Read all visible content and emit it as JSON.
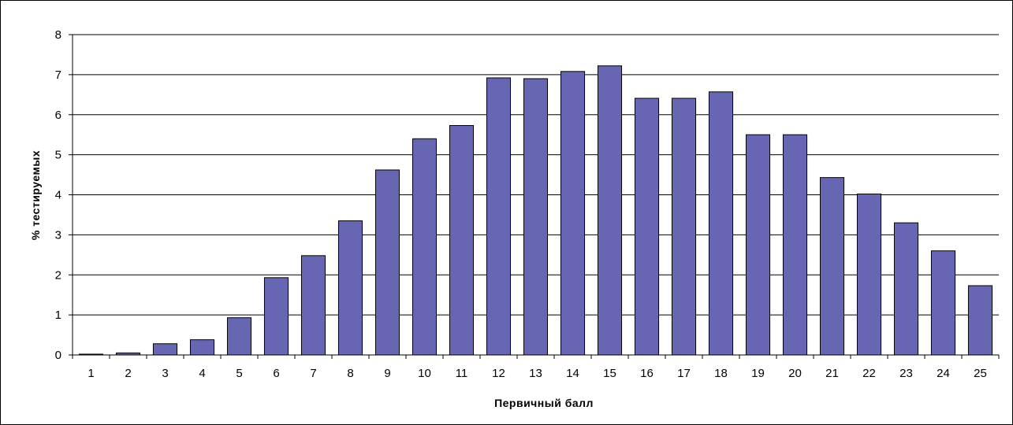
{
  "chart_data": {
    "type": "bar",
    "title": "",
    "xlabel": "Первичный балл",
    "ylabel": "% тестируемых",
    "categories": [
      "1",
      "2",
      "3",
      "4",
      "5",
      "6",
      "7",
      "8",
      "9",
      "10",
      "11",
      "12",
      "13",
      "14",
      "15",
      "16",
      "17",
      "18",
      "19",
      "20",
      "21",
      "22",
      "23",
      "24",
      "25"
    ],
    "values": [
      0.02,
      0.05,
      0.28,
      0.38,
      0.93,
      1.93,
      2.48,
      3.35,
      4.62,
      5.4,
      5.73,
      6.92,
      6.9,
      7.08,
      7.22,
      6.41,
      6.41,
      6.57,
      5.5,
      5.5,
      4.43,
      4.02,
      3.3,
      2.6,
      1.73
    ],
    "ylim": [
      0,
      8
    ],
    "yticks": [
      0,
      1,
      2,
      3,
      4,
      5,
      6,
      7,
      8
    ],
    "grid": true,
    "legend": "none",
    "colors": {
      "bar": "#6666b3",
      "bar_stroke": "#000000",
      "grid": "#000000"
    }
  }
}
